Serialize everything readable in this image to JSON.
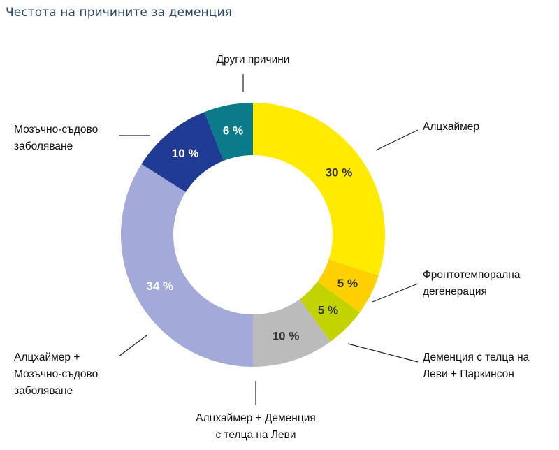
{
  "chart_data": {
    "type": "pie",
    "variant": "donut",
    "title": "Честота на причините за деменция",
    "start": "top, clockwise",
    "slices": [
      {
        "name": "Алцхаймер",
        "label_lines": [
          "Алцхаймер"
        ],
        "value": 30,
        "display": "30 %",
        "color": "#FFEA00",
        "text_color": "#333333"
      },
      {
        "name": "Фронтотемпорална дегенерация",
        "label_lines": [
          "Фронтотемпорална",
          "дегенерация"
        ],
        "value": 5,
        "display": "5 %",
        "color": "#FFD000",
        "text_color": "#333333"
      },
      {
        "name": "Деменция с телца на Леви + Паркинсон",
        "label_lines": [
          "Деменция с телца на",
          "Леви + Паркинсон"
        ],
        "value": 5,
        "display": "5 %",
        "color": "#C3D300",
        "text_color": "#333333"
      },
      {
        "name": "Алцхаймер + Деменция с телца на Леви",
        "label_lines": [
          "Алцхаймер + Деменция",
          "с телца на Леви"
        ],
        "value": 10,
        "display": "10 %",
        "color": "#BBBBBB",
        "text_color": "#333333"
      },
      {
        "name": "Алцхаймер + Мозъчно-съдово заболяване",
        "label_lines": [
          "Алцхаймер +",
          "Мозъчно-съдово",
          "заболяване"
        ],
        "value": 34,
        "display": "34 %",
        "color": "#A3A9D8",
        "text_color": "#FFFFFF"
      },
      {
        "name": "Мозъчно-съдово заболяване",
        "label_lines": [
          "Мозъчно-съдово",
          "заболяване"
        ],
        "value": 10,
        "display": "10 %",
        "color": "#1F3B94",
        "text_color": "#FFFFFF"
      },
      {
        "name": "Други причини",
        "label_lines": [
          "Други причини"
        ],
        "value": 6,
        "display": "6 %",
        "color": "#0B7A8A",
        "text_color": "#FFFFFF"
      }
    ]
  }
}
